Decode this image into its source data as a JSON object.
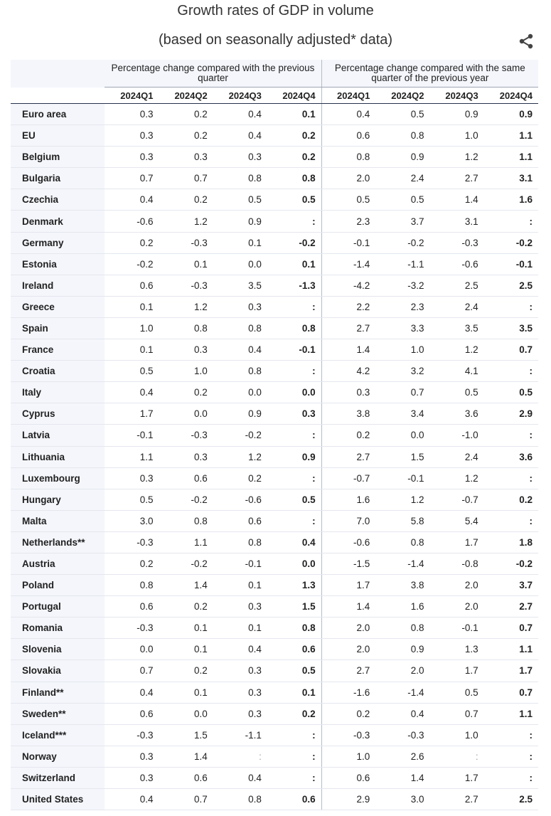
{
  "title": "Growth rates of GDP in volume",
  "subtitle": "(based on seasonally adjusted* data)",
  "share_icon": "share-icon",
  "table": {
    "group_headers": [
      "Percentage change compared with the previous quarter",
      "Percentage change compared with the same quarter of the previous year"
    ],
    "quarters": [
      "2024Q1",
      "2024Q2",
      "2024Q3",
      "2024Q4",
      "2024Q1",
      "2024Q2",
      "2024Q3",
      "2024Q4"
    ],
    "rows": [
      {
        "name": "Euro area",
        "v": [
          "0.3",
          "0.2",
          "0.4",
          "0.1",
          "0.4",
          "0.5",
          "0.9",
          "0.9"
        ]
      },
      {
        "name": "EU",
        "v": [
          "0.3",
          "0.2",
          "0.4",
          "0.2",
          "0.6",
          "0.8",
          "1.0",
          "1.1"
        ]
      },
      {
        "name": "Belgium",
        "v": [
          "0.3",
          "0.3",
          "0.3",
          "0.2",
          "0.8",
          "0.9",
          "1.2",
          "1.1"
        ]
      },
      {
        "name": "Bulgaria",
        "v": [
          "0.7",
          "0.7",
          "0.8",
          "0.8",
          "2.0",
          "2.4",
          "2.7",
          "3.1"
        ]
      },
      {
        "name": "Czechia",
        "v": [
          "0.4",
          "0.2",
          "0.5",
          "0.5",
          "0.5",
          "0.5",
          "1.4",
          "1.6"
        ]
      },
      {
        "name": "Denmark",
        "v": [
          "-0.6",
          "1.2",
          "0.9",
          ":",
          "2.3",
          "3.7",
          "3.1",
          ":"
        ]
      },
      {
        "name": "Germany",
        "v": [
          "0.2",
          "-0.3",
          "0.1",
          "-0.2",
          "-0.1",
          "-0.2",
          "-0.3",
          "-0.2"
        ]
      },
      {
        "name": "Estonia",
        "v": [
          "-0.2",
          "0.1",
          "0.0",
          "0.1",
          "-1.4",
          "-1.1",
          "-0.6",
          "-0.1"
        ]
      },
      {
        "name": "Ireland",
        "v": [
          "0.6",
          "-0.3",
          "3.5",
          "-1.3",
          "-4.2",
          "-3.2",
          "2.5",
          "2.5"
        ]
      },
      {
        "name": "Greece",
        "v": [
          "0.1",
          "1.2",
          "0.3",
          ":",
          "2.2",
          "2.3",
          "2.4",
          ":"
        ]
      },
      {
        "name": "Spain",
        "v": [
          "1.0",
          "0.8",
          "0.8",
          "0.8",
          "2.7",
          "3.3",
          "3.5",
          "3.5"
        ]
      },
      {
        "name": "France",
        "v": [
          "0.1",
          "0.3",
          "0.4",
          "-0.1",
          "1.4",
          "1.0",
          "1.2",
          "0.7"
        ]
      },
      {
        "name": "Croatia",
        "v": [
          "0.5",
          "1.0",
          "0.8",
          ":",
          "4.2",
          "3.2",
          "4.1",
          ":"
        ]
      },
      {
        "name": "Italy",
        "v": [
          "0.4",
          "0.2",
          "0.0",
          "0.0",
          "0.3",
          "0.7",
          "0.5",
          "0.5"
        ]
      },
      {
        "name": "Cyprus",
        "v": [
          "1.7",
          "0.0",
          "0.9",
          "0.3",
          "3.8",
          "3.4",
          "3.6",
          "2.9"
        ]
      },
      {
        "name": "Latvia",
        "v": [
          "-0.1",
          "-0.3",
          "-0.2",
          ":",
          "0.2",
          "0.0",
          "-1.0",
          ":"
        ]
      },
      {
        "name": "Lithuania",
        "v": [
          "1.1",
          "0.3",
          "1.2",
          "0.9",
          "2.7",
          "1.5",
          "2.4",
          "3.6"
        ]
      },
      {
        "name": "Luxembourg",
        "v": [
          "0.3",
          "0.6",
          "0.2",
          ":",
          "-0.7",
          "-0.1",
          "1.2",
          ":"
        ]
      },
      {
        "name": "Hungary",
        "v": [
          "0.5",
          "-0.2",
          "-0.6",
          "0.5",
          "1.6",
          "1.2",
          "-0.7",
          "0.2"
        ]
      },
      {
        "name": "Malta",
        "v": [
          "3.0",
          "0.8",
          "0.6",
          ":",
          "7.0",
          "5.8",
          "5.4",
          ":"
        ]
      },
      {
        "name": "Netherlands**",
        "v": [
          "-0.3",
          "1.1",
          "0.8",
          "0.4",
          "-0.6",
          "0.8",
          "1.7",
          "1.8"
        ]
      },
      {
        "name": "Austria",
        "v": [
          "0.2",
          "-0.2",
          "-0.1",
          "0.0",
          "-1.5",
          "-1.4",
          "-0.8",
          "-0.2"
        ]
      },
      {
        "name": "Poland",
        "v": [
          "0.8",
          "1.4",
          "0.1",
          "1.3",
          "1.7",
          "3.8",
          "2.0",
          "3.7"
        ]
      },
      {
        "name": "Portugal",
        "v": [
          "0.6",
          "0.2",
          "0.3",
          "1.5",
          "1.4",
          "1.6",
          "2.0",
          "2.7"
        ]
      },
      {
        "name": "Romania",
        "v": [
          "-0.3",
          "0.1",
          "0.1",
          "0.8",
          "2.0",
          "0.8",
          "-0.1",
          "0.7"
        ]
      },
      {
        "name": "Slovenia",
        "v": [
          "0.0",
          "0.1",
          "0.4",
          "0.6",
          "2.0",
          "0.9",
          "1.3",
          "1.1"
        ]
      },
      {
        "name": "Slovakia",
        "v": [
          "0.7",
          "0.2",
          "0.3",
          "0.5",
          "2.7",
          "2.0",
          "1.7",
          "1.7"
        ]
      },
      {
        "name": "Finland**",
        "v": [
          "0.4",
          "0.1",
          "0.3",
          "0.1",
          "-1.6",
          "-1.4",
          "0.5",
          "0.7"
        ]
      },
      {
        "name": "Sweden**",
        "v": [
          "0.6",
          "0.0",
          "0.3",
          "0.2",
          "0.2",
          "0.4",
          "0.7",
          "1.1"
        ]
      },
      {
        "name": "Iceland***",
        "v": [
          "-0.3",
          "1.5",
          "-1.1",
          ":",
          "-0.3",
          "-0.3",
          "1.0",
          ":"
        ]
      },
      {
        "name": "Norway",
        "v": [
          "0.3",
          "1.4",
          ":",
          ":",
          "1.0",
          "2.6",
          ":",
          ":"
        ]
      },
      {
        "name": "Switzerland",
        "v": [
          "0.3",
          "0.6",
          "0.4",
          ":",
          "0.6",
          "1.4",
          "1.7",
          ":"
        ]
      },
      {
        "name": "United States",
        "v": [
          "0.4",
          "0.7",
          "0.8",
          "0.6",
          "2.9",
          "3.0",
          "2.7",
          "2.5"
        ]
      }
    ]
  }
}
